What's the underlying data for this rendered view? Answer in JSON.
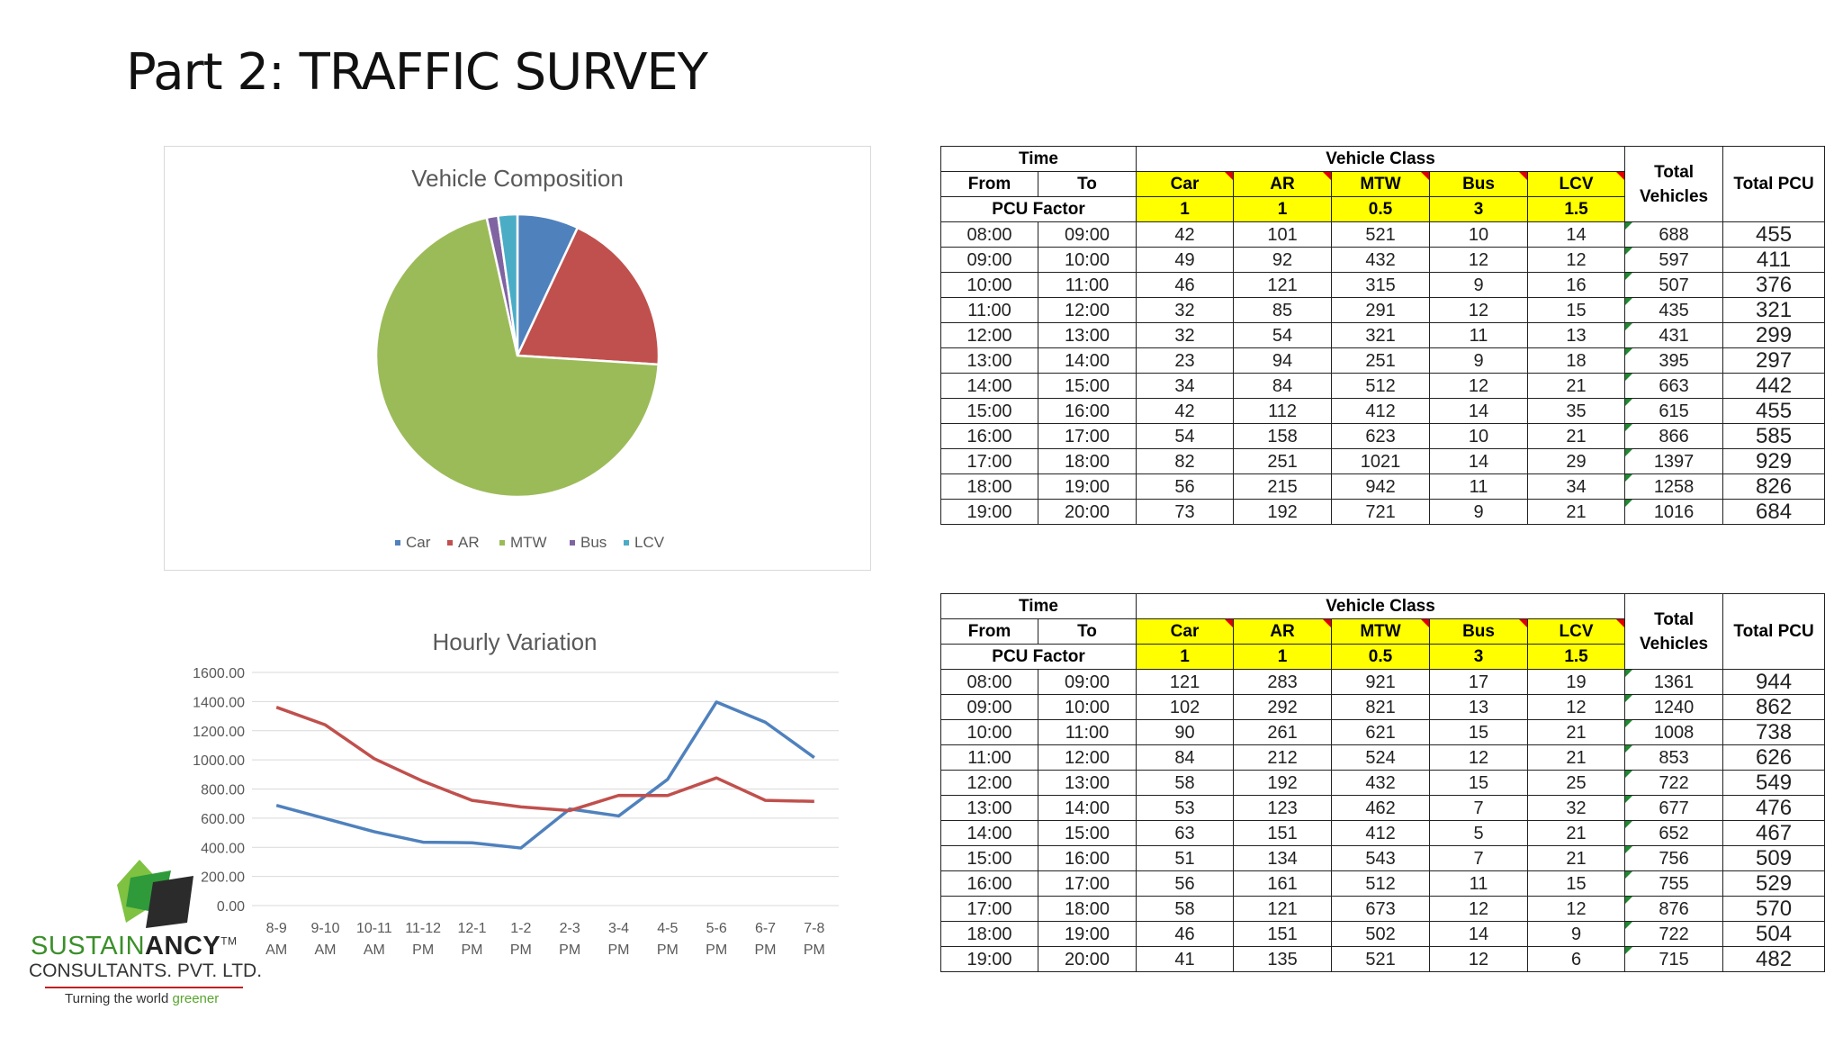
{
  "slide": {
    "title": "Part 2: TRAFFIC SURVEY"
  },
  "colors": {
    "car": "#4f81bd",
    "ar": "#c0504d",
    "mtw": "#9bbb59",
    "bus": "#8064a2",
    "lcv": "#4bacc6",
    "highlight": "#ffff00"
  },
  "chart_data": [
    {
      "type": "pie",
      "title": "Vehicle Composition",
      "labels": [
        "Car",
        "AR",
        "MTW",
        "Bus",
        "LCV"
      ],
      "values": [
        7.0,
        19.0,
        70.5,
        1.3,
        2.2
      ],
      "unit": "%",
      "legend": "bottom"
    },
    {
      "type": "line",
      "title": "Hourly Variation",
      "categories": [
        "8-9 AM",
        "9-10 AM",
        "10-11 AM",
        "11-12 PM",
        "12-1 PM",
        "1-2 PM",
        "2-3 PM",
        "3-4 PM",
        "4-5 PM",
        "5-6 PM",
        "6-7 PM",
        "7-8 PM"
      ],
      "series": [
        {
          "values": [
            688,
            597,
            507,
            435,
            431,
            395,
            663,
            615,
            866,
            1397,
            1258,
            1016
          ]
        },
        {
          "values": [
            1361,
            1240,
            1008,
            853,
            722,
            677,
            652,
            756,
            755,
            876,
            722,
            715
          ]
        }
      ],
      "ylim": [
        0,
        1600
      ],
      "yticks": [
        "1600.00",
        "1400.00",
        "1200.00",
        "1000.00",
        "800.00",
        "600.00",
        "400.00",
        "200.00",
        "0.00"
      ],
      "grid": true
    }
  ],
  "tables": [
    {
      "headers": {
        "time": "Time",
        "vehicle_class": "Vehicle Class",
        "from": "From",
        "to": "To",
        "pcu_factor": "PCU Factor",
        "total_vehicles": "Total Vehicles",
        "total_pcu": "Total PCU"
      },
      "classes": [
        "Car",
        "AR",
        "MTW",
        "Bus",
        "LCV"
      ],
      "factors": [
        "1",
        "1",
        "0.5",
        "3",
        "1.5"
      ],
      "rows": [
        [
          "08:00",
          "09:00",
          "42",
          "101",
          "521",
          "10",
          "14",
          "688",
          "455"
        ],
        [
          "09:00",
          "10:00",
          "49",
          "92",
          "432",
          "12",
          "12",
          "597",
          "411"
        ],
        [
          "10:00",
          "11:00",
          "46",
          "121",
          "315",
          "9",
          "16",
          "507",
          "376"
        ],
        [
          "11:00",
          "12:00",
          "32",
          "85",
          "291",
          "12",
          "15",
          "435",
          "321"
        ],
        [
          "12:00",
          "13:00",
          "32",
          "54",
          "321",
          "11",
          "13",
          "431",
          "299"
        ],
        [
          "13:00",
          "14:00",
          "23",
          "94",
          "251",
          "9",
          "18",
          "395",
          "297"
        ],
        [
          "14:00",
          "15:00",
          "34",
          "84",
          "512",
          "12",
          "21",
          "663",
          "442"
        ],
        [
          "15:00",
          "16:00",
          "42",
          "112",
          "412",
          "14",
          "35",
          "615",
          "455"
        ],
        [
          "16:00",
          "17:00",
          "54",
          "158",
          "623",
          "10",
          "21",
          "866",
          "585"
        ],
        [
          "17:00",
          "18:00",
          "82",
          "251",
          "1021",
          "14",
          "29",
          "1397",
          "929"
        ],
        [
          "18:00",
          "19:00",
          "56",
          "215",
          "942",
          "11",
          "34",
          "1258",
          "826"
        ],
        [
          "19:00",
          "20:00",
          "73",
          "192",
          "721",
          "9",
          "21",
          "1016",
          "684"
        ]
      ]
    },
    {
      "headers": {
        "time": "Time",
        "vehicle_class": "Vehicle Class",
        "from": "From",
        "to": "To",
        "pcu_factor": "PCU Factor",
        "total_vehicles": "Total Vehicles",
        "total_pcu": "Total PCU"
      },
      "classes": [
        "Car",
        "AR",
        "MTW",
        "Bus",
        "LCV"
      ],
      "factors": [
        "1",
        "1",
        "0.5",
        "3",
        "1.5"
      ],
      "rows": [
        [
          "08:00",
          "09:00",
          "121",
          "283",
          "921",
          "17",
          "19",
          "1361",
          "944"
        ],
        [
          "09:00",
          "10:00",
          "102",
          "292",
          "821",
          "13",
          "12",
          "1240",
          "862"
        ],
        [
          "10:00",
          "11:00",
          "90",
          "261",
          "621",
          "15",
          "21",
          "1008",
          "738"
        ],
        [
          "11:00",
          "12:00",
          "84",
          "212",
          "524",
          "12",
          "21",
          "853",
          "626"
        ],
        [
          "12:00",
          "13:00",
          "58",
          "192",
          "432",
          "15",
          "25",
          "722",
          "549"
        ],
        [
          "13:00",
          "14:00",
          "53",
          "123",
          "462",
          "7",
          "32",
          "677",
          "476"
        ],
        [
          "14:00",
          "15:00",
          "63",
          "151",
          "412",
          "5",
          "21",
          "652",
          "467"
        ],
        [
          "15:00",
          "16:00",
          "51",
          "134",
          "543",
          "7",
          "21",
          "756",
          "509"
        ],
        [
          "16:00",
          "17:00",
          "56",
          "161",
          "512",
          "11",
          "15",
          "755",
          "529"
        ],
        [
          "17:00",
          "18:00",
          "58",
          "121",
          "673",
          "12",
          "12",
          "876",
          "570"
        ],
        [
          "18:00",
          "19:00",
          "46",
          "151",
          "502",
          "14",
          "9",
          "722",
          "504"
        ],
        [
          "19:00",
          "20:00",
          "41",
          "135",
          "521",
          "12",
          "6",
          "715",
          "482"
        ]
      ]
    }
  ],
  "logo": {
    "brand_light": "SUSTAIN",
    "brand_bold": "ANCY",
    "trademark": "TM",
    "company": "CONSULTANTS. PVT. LTD.",
    "tagline_start": "Turning the world ",
    "tagline_green": "greener"
  }
}
